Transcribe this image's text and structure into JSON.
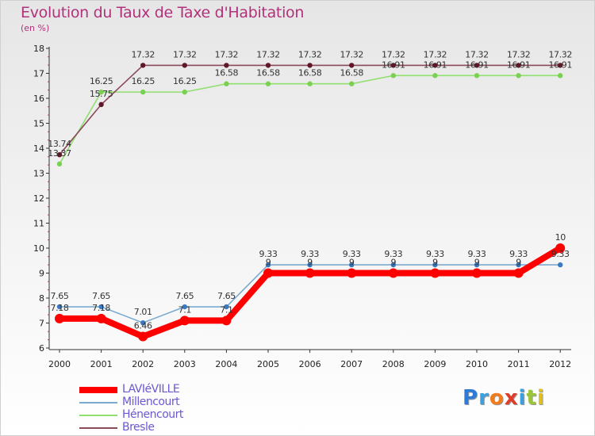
{
  "title": "Evolution du Taux de Taxe d'Habitation",
  "subtitle": "(en %)",
  "logo": {
    "text": "Proxiti",
    "letters": [
      {
        "ch": "P",
        "color": "#2c7bd6"
      },
      {
        "ch": "r",
        "color": "#3aa0e0"
      },
      {
        "ch": "o",
        "color": "#f07c1c"
      },
      {
        "ch": "x",
        "color": "#e03c2a"
      },
      {
        "ch": "i",
        "color": "#3aa0e0"
      },
      {
        "ch": "t",
        "color": "#9ac43a"
      },
      {
        "ch": "i",
        "color": "#e0c020"
      }
    ]
  },
  "chart_data": {
    "type": "line",
    "title": "Evolution du Taux de Taxe d'Habitation",
    "ylabel": "(en %)",
    "xlabel": "",
    "ylim": [
      6,
      18
    ],
    "yticks": [
      6,
      7,
      8,
      9,
      10,
      11,
      12,
      13,
      14,
      15,
      16,
      17,
      18
    ],
    "categories": [
      "2000",
      "2001",
      "2002",
      "2003",
      "2004",
      "2005",
      "2006",
      "2007",
      "2008",
      "2009",
      "2010",
      "2011",
      "2012"
    ],
    "series": [
      {
        "name": "LAVIéVILLE",
        "color": "#ff0000",
        "values": [
          7.18,
          7.18,
          6.46,
          7.1,
          7.1,
          9.0,
          9.0,
          9.0,
          9.0,
          9.0,
          9.0,
          9.0,
          10.0
        ],
        "labels": [
          "7.18",
          "7.18",
          "6.46",
          "7.1",
          "7.1",
          "9",
          "9",
          "9",
          "9",
          "9",
          "9",
          "9",
          "10"
        ]
      },
      {
        "name": "Millencourt",
        "color": "#7aaad0",
        "values": [
          7.65,
          7.65,
          7.01,
          7.65,
          7.65,
          9.33,
          9.33,
          9.33,
          9.33,
          9.33,
          9.33,
          9.33,
          9.33
        ],
        "labels": [
          "7.65",
          "7.65",
          "7.01",
          "7.65",
          "7.65",
          "9.33",
          "9.33",
          "9.33",
          "9.33",
          "9.33",
          "9.33",
          "9.33",
          "9.33"
        ]
      },
      {
        "name": "Hénencourt",
        "color": "#90e070",
        "values": [
          13.37,
          16.25,
          16.25,
          16.25,
          16.58,
          16.58,
          16.58,
          16.58,
          16.91,
          16.91,
          16.91,
          16.91,
          16.91
        ],
        "labels": [
          "13.37",
          "16.25",
          "16.25",
          "16.25",
          "16.58",
          "16.58",
          "16.58",
          "16.58",
          "16.91",
          "16.91",
          "16.91",
          "16.91",
          "16.91"
        ]
      },
      {
        "name": "Bresle",
        "color": "#8a4a5a",
        "values": [
          13.74,
          15.75,
          17.32,
          17.32,
          17.32,
          17.32,
          17.32,
          17.32,
          17.32,
          17.32,
          17.32,
          17.32,
          17.32
        ],
        "labels": [
          "13.74",
          "15.75",
          "17.32",
          "17.32",
          "17.32",
          "17.32",
          "17.32",
          "17.32",
          "17.32",
          "17.32",
          "17.32",
          "17.32",
          "17.32"
        ]
      }
    ],
    "legend": "bottom-left",
    "grid": false
  }
}
